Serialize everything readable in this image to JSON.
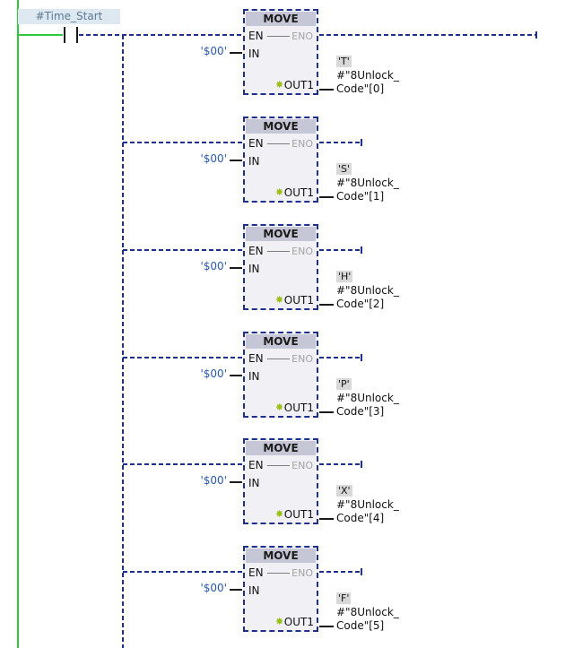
{
  "contact": {
    "name": "#Time_Start"
  },
  "blocks": [
    {
      "title": "MOVE",
      "en": "EN",
      "eno": "ENO",
      "in_pin": "IN",
      "in_value": "'$00'",
      "out_pin": "OUT1",
      "const": "'T'",
      "tag_line1": "#\"8Unlock_",
      "tag_line2": "Code\"[0]"
    },
    {
      "title": "MOVE",
      "en": "EN",
      "eno": "ENO",
      "in_pin": "IN",
      "in_value": "'$00'",
      "out_pin": "OUT1",
      "const": "'S'",
      "tag_line1": "#\"8Unlock_",
      "tag_line2": "Code\"[1]"
    },
    {
      "title": "MOVE",
      "en": "EN",
      "eno": "ENO",
      "in_pin": "IN",
      "in_value": "'$00'",
      "out_pin": "OUT1",
      "const": "'H'",
      "tag_line1": "#\"8Unlock_",
      "tag_line2": "Code\"[2]"
    },
    {
      "title": "MOVE",
      "en": "EN",
      "eno": "ENO",
      "in_pin": "IN",
      "in_value": "'$00'",
      "out_pin": "OUT1",
      "const": "'P'",
      "tag_line1": "#\"8Unlock_",
      "tag_line2": "Code\"[3]"
    },
    {
      "title": "MOVE",
      "en": "EN",
      "eno": "ENO",
      "in_pin": "IN",
      "in_value": "'$00'",
      "out_pin": "OUT1",
      "const": "'X'",
      "tag_line1": "#\"8Unlock_",
      "tag_line2": "Code\"[4]"
    },
    {
      "title": "MOVE",
      "en": "EN",
      "eno": "ENO",
      "in_pin": "IN",
      "in_value": "'$00'",
      "out_pin": "OUT1",
      "const": "'F'",
      "tag_line1": "#\"8Unlock_",
      "tag_line2": "Code\"[5]"
    }
  ],
  "colors": {
    "power_rail": "#2dc83c",
    "wire": "#1e2f8c",
    "block_border": "#1e2f8c"
  }
}
